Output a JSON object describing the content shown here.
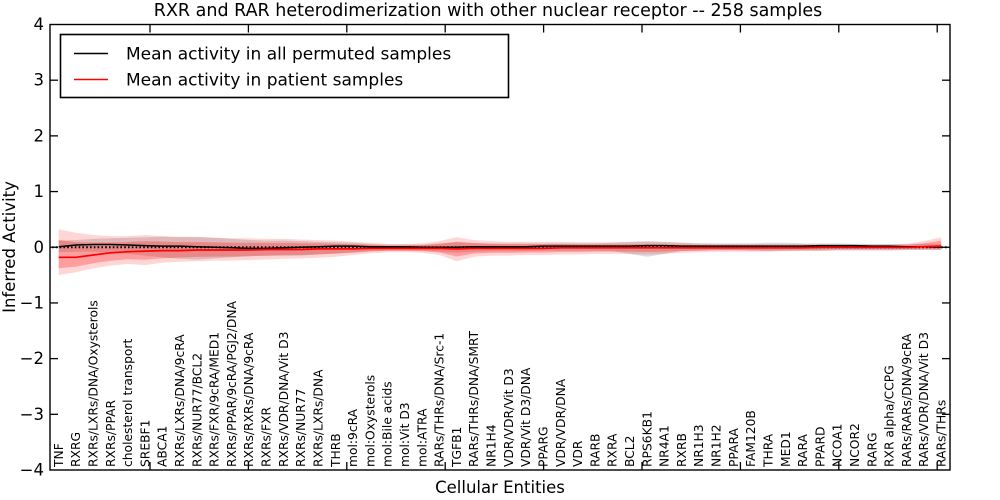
{
  "title": "RXR and RAR heterodimerization with other nuclear receptor -- 258 samples",
  "legend": {
    "permuted_label": "Mean activity in all permuted samples",
    "patient_label": "Mean activity in patient samples"
  },
  "colors": {
    "permuted_line": "#000000",
    "patient_line": "#ff0000",
    "permuted_band": "rgba(115,115,115,0.25)",
    "patient_band_outer": "rgba(255,0,0,0.16)",
    "patient_band_inner": "rgba(255,0,0,0.26)",
    "zero_line": "#000000",
    "frame": "#000000"
  },
  "chart_data": {
    "type": "line",
    "title": "RXR and RAR heterodimerization with other nuclear receptor -- 258 samples",
    "xlabel": "Cellular Entities",
    "ylabel": "Inferred Activity",
    "ylim": [
      -4,
      4
    ],
    "yticks": [
      4,
      3,
      2,
      1,
      0,
      -1,
      -2,
      -3,
      -4
    ],
    "yticklabels": [
      "4",
      "3",
      "2",
      "1",
      "0",
      "−1",
      "−2",
      "−3",
      "−4"
    ],
    "grid": false,
    "zero_line_dotted": true,
    "legend_position": "upper left",
    "band_inner_scale": 0.62,
    "categories": [
      "TNF",
      "RXRG",
      "RXRs/LXRs/DNA/Oxysterols",
      "RXRs/PPAR",
      "cholesterol transport",
      "SREBF1",
      "ABCA1",
      "RXRs/LXRs/DNA/9cRA",
      "RXRs/NUR77/BCL2",
      "RXRs/FXR/9cRA/MED1",
      "RXRs/PPAR/9cRA/PGJ2/DNA",
      "RXRs/RXRs/DNA/9cRA",
      "RXRs/FXR",
      "RXRs/VDR/DNA/Vit D3",
      "RXRs/NUR77",
      "RXRs/LXRs/DNA",
      "THRB",
      "mol:9cRA",
      "mol:Oxysterols",
      "mol:Bile acids",
      "mol:Vit D3",
      "mol:ATRA",
      "RARs/THRs/DNA/Src-1",
      "TGFB1",
      "RARs/THRs/DNA/SMRT",
      "NR1H4",
      "VDR/VDR/Vit D3",
      "VDR/Vit D3/DNA",
      "PPARG",
      "VDR/VDR/DNA",
      "VDR",
      "RARB",
      "RXRA",
      "BCL2",
      "RPS6KB1",
      "NR4A1",
      "RXRB",
      "NR1H3",
      "NR1H2",
      "PPARA",
      "FAM120B",
      "THRA",
      "MED1",
      "RARA",
      "PPARD",
      "NCOA1",
      "NCOR2",
      "RARG",
      "RXR alpha/CCPG",
      "RARs/RARs/DNA/9cRA",
      "RARs/VDR/DNA/Vit D3",
      "RARs/THRs"
    ],
    "series": [
      {
        "name": "Mean activity in all permuted samples",
        "color": "#000000",
        "values": [
          0.01,
          0.04,
          0.05,
          0.05,
          0.04,
          0.03,
          0.02,
          0.02,
          0.01,
          0.0,
          -0.01,
          -0.02,
          -0.02,
          -0.01,
          0.0,
          0.01,
          0.02,
          0.02,
          0.01,
          0.01,
          0.01,
          0.0,
          0.0,
          0.0,
          0.01,
          0.01,
          0.01,
          0.01,
          0.02,
          0.02,
          0.02,
          0.02,
          0.02,
          0.02,
          0.03,
          0.03,
          0.02,
          0.02,
          0.02,
          0.02,
          0.02,
          0.02,
          0.02,
          0.02,
          0.03,
          0.03,
          0.03,
          0.02,
          0.02,
          0.01,
          0.01,
          0.0
        ]
      },
      {
        "name": "Mean activity in patient samples",
        "color": "#ff0000",
        "values": [
          -0.18,
          -0.18,
          -0.14,
          -0.1,
          -0.08,
          -0.07,
          -0.06,
          -0.06,
          -0.05,
          -0.05,
          -0.05,
          -0.05,
          -0.04,
          -0.04,
          -0.04,
          -0.03,
          -0.03,
          -0.03,
          -0.02,
          -0.02,
          -0.02,
          -0.02,
          -0.02,
          -0.03,
          -0.02,
          -0.02,
          -0.02,
          -0.02,
          -0.02,
          -0.01,
          -0.01,
          -0.01,
          -0.01,
          -0.01,
          -0.01,
          -0.01,
          -0.01,
          -0.01,
          -0.01,
          -0.01,
          -0.01,
          -0.01,
          -0.01,
          -0.01,
          0.0,
          0.0,
          0.0,
          0.0,
          0.0,
          0.0,
          0.01,
          0.02
        ]
      }
    ],
    "bands": [
      {
        "name": "permuted-std-band",
        "upper": [
          0.12,
          0.13,
          0.15,
          0.16,
          0.17,
          0.18,
          0.19,
          0.19,
          0.19,
          0.17,
          0.15,
          0.13,
          0.12,
          0.12,
          0.11,
          0.1,
          0.09,
          0.08,
          0.06,
          0.05,
          0.05,
          0.05,
          0.07,
          0.09,
          0.08,
          0.07,
          0.07,
          0.07,
          0.07,
          0.07,
          0.07,
          0.07,
          0.08,
          0.1,
          0.11,
          0.1,
          0.08,
          0.07,
          0.07,
          0.07,
          0.07,
          0.08,
          0.08,
          0.07,
          0.07,
          0.07,
          0.06,
          0.06,
          0.06,
          0.06,
          0.06,
          0.06
        ],
        "lower": [
          -0.09,
          -0.08,
          -0.08,
          -0.1,
          -0.12,
          -0.15,
          -0.18,
          -0.21,
          -0.22,
          -0.2,
          -0.18,
          -0.16,
          -0.15,
          -0.15,
          -0.15,
          -0.13,
          -0.11,
          -0.09,
          -0.07,
          -0.06,
          -0.06,
          -0.06,
          -0.08,
          -0.1,
          -0.08,
          -0.07,
          -0.07,
          -0.07,
          -0.06,
          -0.06,
          -0.06,
          -0.06,
          -0.07,
          -0.12,
          -0.17,
          -0.12,
          -0.07,
          -0.06,
          -0.05,
          -0.05,
          -0.06,
          -0.07,
          -0.07,
          -0.06,
          -0.06,
          -0.05,
          -0.05,
          -0.05,
          -0.05,
          -0.05,
          -0.05,
          -0.05
        ]
      },
      {
        "name": "patient-std-band",
        "upper": [
          0.32,
          0.26,
          0.22,
          0.2,
          0.2,
          0.22,
          0.2,
          0.18,
          0.18,
          0.17,
          0.16,
          0.16,
          0.15,
          0.15,
          0.14,
          0.13,
          0.12,
          0.1,
          0.08,
          0.06,
          0.06,
          0.07,
          0.11,
          0.18,
          0.13,
          0.11,
          0.1,
          0.1,
          0.1,
          0.1,
          0.09,
          0.09,
          0.09,
          0.09,
          0.1,
          0.09,
          0.08,
          0.07,
          0.06,
          0.06,
          0.06,
          0.06,
          0.06,
          0.06,
          0.05,
          0.05,
          0.05,
          0.05,
          0.05,
          0.06,
          0.11,
          0.18
        ],
        "lower": [
          -0.5,
          -0.45,
          -0.38,
          -0.33,
          -0.3,
          -0.32,
          -0.28,
          -0.26,
          -0.25,
          -0.24,
          -0.24,
          -0.23,
          -0.22,
          -0.21,
          -0.2,
          -0.19,
          -0.17,
          -0.14,
          -0.11,
          -0.09,
          -0.09,
          -0.1,
          -0.14,
          -0.25,
          -0.17,
          -0.15,
          -0.15,
          -0.14,
          -0.14,
          -0.13,
          -0.13,
          -0.12,
          -0.12,
          -0.12,
          -0.13,
          -0.12,
          -0.1,
          -0.09,
          -0.08,
          -0.08,
          -0.08,
          -0.08,
          -0.07,
          -0.07,
          -0.07,
          -0.06,
          -0.06,
          -0.06,
          -0.06,
          -0.05,
          -0.05,
          -0.05
        ]
      }
    ]
  }
}
